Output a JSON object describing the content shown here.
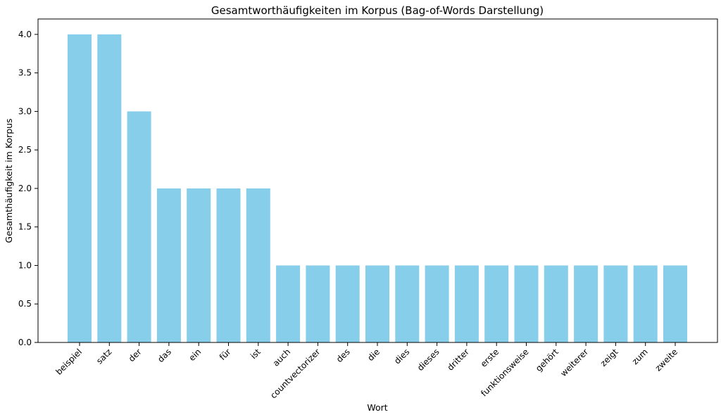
{
  "chart_data": {
    "type": "bar",
    "title": "Gesamtworthäufigkeiten im Korpus (Bag-of-Words Darstellung)",
    "xlabel": "Wort",
    "ylabel": "Gesamthäufigkeit im Korpus",
    "categories": [
      "beispiel",
      "satz",
      "der",
      "das",
      "ein",
      "für",
      "ist",
      "auch",
      "countvectorizer",
      "des",
      "die",
      "dies",
      "dieses",
      "dritter",
      "erste",
      "funktionsweise",
      "gehört",
      "weiterer",
      "zeigt",
      "zum",
      "zweite"
    ],
    "values": [
      4,
      4,
      3,
      2,
      2,
      2,
      2,
      1,
      1,
      1,
      1,
      1,
      1,
      1,
      1,
      1,
      1,
      1,
      1,
      1,
      1
    ],
    "ylim": [
      0,
      4.2
    ],
    "yticks": [
      "0.0",
      "0.5",
      "1.0",
      "1.5",
      "2.0",
      "2.5",
      "3.0",
      "3.5",
      "4.0"
    ],
    "grid": false,
    "bar_color": "#87ceeb"
  }
}
